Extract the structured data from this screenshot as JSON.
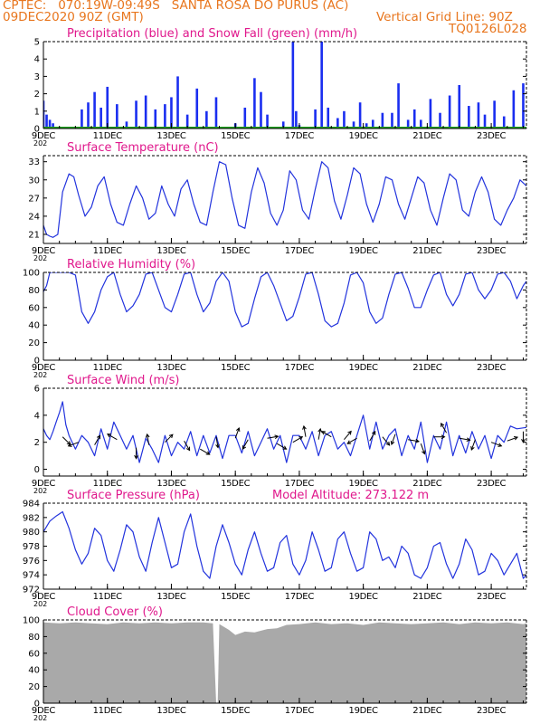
{
  "header": {
    "line1": "CPTEC:   070:19W-09:49S   SANTA ROSA DO PURUS (AC)",
    "line2_left": "09DEC2020 90Z (GMT)",
    "line2_right": "Vertical Grid Line: 90Z",
    "code": "TQ0126L028"
  },
  "colors": {
    "header": "#e8761e",
    "panel_title": "#e0188c",
    "line": "#2233dd",
    "precip_bar": "#1a2ef0",
    "snow": "#1fa01f",
    "cloud": "#a9a9a9",
    "axis": "#000000"
  },
  "x_axis": {
    "tick_labels": [
      "9DEC",
      "11DEC",
      "13DEC",
      "15DEC",
      "17DEC",
      "19DEC",
      "21DEC",
      "23DEC"
    ],
    "tick_days": [
      9,
      11,
      13,
      15,
      17,
      19,
      21,
      23
    ],
    "range_days": [
      9,
      24.1
    ],
    "minor_step_days": 0.5,
    "year_fragment": "202"
  },
  "chart_data": [
    {
      "id": "precip",
      "type": "bar",
      "title": "Precipitation (blue) and Snow Fall (green) (mm/h)",
      "ylim": [
        0,
        5
      ],
      "yticks": [
        0,
        1,
        2,
        3,
        4,
        5
      ],
      "series": [
        {
          "name": "Precipitation",
          "color": "#1a2ef0",
          "x": [
            9.0,
            9.1,
            9.2,
            9.3,
            10.2,
            10.4,
            10.6,
            10.8,
            11.0,
            11.3,
            11.6,
            11.9,
            12.2,
            12.5,
            12.8,
            13.0,
            13.2,
            13.5,
            13.8,
            14.1,
            14.4,
            14.7,
            15.0,
            15.3,
            15.6,
            15.8,
            16.0,
            16.2,
            16.5,
            16.8,
            16.9,
            17.0,
            17.3,
            17.5,
            17.7,
            17.9,
            18.2,
            18.4,
            18.7,
            18.9,
            19.1,
            19.3,
            19.6,
            19.9,
            20.1,
            20.4,
            20.6,
            20.8,
            21.1,
            21.4,
            21.7,
            22.0,
            22.3,
            22.6,
            22.8,
            23.1,
            23.4,
            23.7,
            24.0
          ],
          "values": [
            1.6,
            0.8,
            0.5,
            0.3,
            1.1,
            1.5,
            2.1,
            1.2,
            2.4,
            1.4,
            0.4,
            1.6,
            1.9,
            1.1,
            1.4,
            1.8,
            3.0,
            0.8,
            2.3,
            1.0,
            1.8,
            0.0,
            0.3,
            1.2,
            2.9,
            2.1,
            0.8,
            0.0,
            0.4,
            5.0,
            1.0,
            0.2,
            0.0,
            1.1,
            5.0,
            1.2,
            0.6,
            1.0,
            0.4,
            1.5,
            0.3,
            0.5,
            0.9,
            0.9,
            2.6,
            0.5,
            1.1,
            0.5,
            1.7,
            0.9,
            1.9,
            2.5,
            1.3,
            1.5,
            0.8,
            1.6,
            0.7,
            2.2,
            2.6
          ]
        },
        {
          "name": "Snow Fall",
          "color": "#1fa01f",
          "x": [
            9.0,
            24.1
          ],
          "values": [
            0,
            0
          ]
        }
      ]
    },
    {
      "id": "temp",
      "type": "line",
      "title": "Surface Temperature (nC)",
      "ylim": [
        19.5,
        34
      ],
      "yticks": [
        21,
        24,
        27,
        30,
        33
      ],
      "series": [
        {
          "name": "Temperature",
          "color": "#2233dd",
          "x": [
            9.0,
            9.1,
            9.2,
            9.3,
            9.45,
            9.6,
            9.8,
            9.95,
            10.1,
            10.3,
            10.5,
            10.7,
            10.9,
            11.1,
            11.3,
            11.5,
            11.7,
            11.9,
            12.1,
            12.3,
            12.5,
            12.7,
            12.9,
            13.1,
            13.3,
            13.5,
            13.7,
            13.9,
            14.1,
            14.3,
            14.5,
            14.7,
            14.9,
            15.1,
            15.3,
            15.5,
            15.7,
            15.9,
            16.1,
            16.3,
            16.5,
            16.7,
            16.9,
            17.1,
            17.3,
            17.5,
            17.7,
            17.9,
            18.1,
            18.3,
            18.5,
            18.7,
            18.9,
            19.1,
            19.3,
            19.5,
            19.7,
            19.9,
            20.1,
            20.3,
            20.5,
            20.7,
            20.9,
            21.1,
            21.3,
            21.5,
            21.7,
            21.9,
            22.1,
            22.3,
            22.5,
            22.7,
            22.9,
            23.1,
            23.3,
            23.5,
            23.7,
            23.9,
            24.1
          ],
          "values": [
            22.5,
            21,
            20.7,
            20.5,
            21,
            28,
            31,
            30.5,
            27.5,
            24,
            25.5,
            29,
            30.5,
            26,
            23,
            22.5,
            26,
            29,
            27,
            23.5,
            24.5,
            29,
            26,
            24,
            28.5,
            30,
            26,
            23,
            22.5,
            28,
            33,
            32.5,
            27,
            22.5,
            22,
            28,
            32,
            29.5,
            24.5,
            22.5,
            25,
            31.5,
            30,
            25,
            23.5,
            28.5,
            33,
            32,
            26.5,
            23.5,
            27.5,
            32,
            31,
            26,
            23,
            26,
            30.5,
            30,
            26,
            23.5,
            27,
            30.5,
            29.5,
            25,
            22.5,
            27,
            31,
            30,
            25,
            24,
            28,
            30.5,
            28,
            23.5,
            22.5,
            25,
            27,
            30,
            29
          ]
        }
      ]
    },
    {
      "id": "rh",
      "type": "line",
      "title": "Relative Humidity (%)",
      "ylim": [
        0,
        100
      ],
      "yticks": [
        0,
        20,
        40,
        60,
        80,
        100
      ],
      "series": [
        {
          "name": "Relative Humidity",
          "color": "#2233dd",
          "x": [
            9.0,
            9.1,
            9.2,
            9.4,
            9.6,
            9.8,
            10.0,
            10.2,
            10.4,
            10.6,
            10.8,
            11.0,
            11.2,
            11.4,
            11.6,
            11.8,
            12.0,
            12.2,
            12.4,
            12.6,
            12.8,
            13.0,
            13.2,
            13.4,
            13.6,
            13.8,
            14.0,
            14.2,
            14.4,
            14.6,
            14.8,
            15.0,
            15.2,
            15.4,
            15.6,
            15.8,
            16.0,
            16.2,
            16.4,
            16.6,
            16.8,
            17.0,
            17.2,
            17.4,
            17.6,
            17.8,
            18.0,
            18.2,
            18.4,
            18.6,
            18.8,
            19.0,
            19.2,
            19.4,
            19.6,
            19.8,
            20.0,
            20.2,
            20.4,
            20.6,
            20.8,
            21.0,
            21.2,
            21.4,
            21.6,
            21.8,
            22.0,
            22.2,
            22.4,
            22.6,
            22.8,
            23.0,
            23.2,
            23.4,
            23.6,
            23.8,
            24.0,
            24.1
          ],
          "values": [
            78,
            85,
            100,
            100,
            100,
            100,
            97,
            55,
            42,
            55,
            80,
            95,
            100,
            75,
            55,
            62,
            75,
            98,
            100,
            80,
            60,
            55,
            75,
            98,
            100,
            75,
            55,
            65,
            90,
            100,
            90,
            55,
            38,
            42,
            70,
            95,
            100,
            85,
            65,
            45,
            50,
            72,
            98,
            100,
            75,
            45,
            38,
            42,
            65,
            97,
            100,
            88,
            55,
            42,
            48,
            75,
            98,
            100,
            82,
            60,
            60,
            80,
            97,
            100,
            75,
            62,
            75,
            98,
            100,
            80,
            70,
            80,
            98,
            100,
            90,
            70,
            85,
            90
          ]
        }
      ]
    },
    {
      "id": "wind",
      "type": "line",
      "title": "Surface Wind (m/s)",
      "ylim": [
        -0.5,
        6
      ],
      "yticks": [
        0,
        2,
        4,
        6
      ],
      "series": [
        {
          "name": "Wind speed",
          "color": "#2233dd",
          "x": [
            9.0,
            9.1,
            9.2,
            9.3,
            9.4,
            9.5,
            9.6,
            9.7,
            9.8,
            10.0,
            10.2,
            10.4,
            10.6,
            10.8,
            11.0,
            11.2,
            11.4,
            11.6,
            11.8,
            12.0,
            12.2,
            12.4,
            12.6,
            12.8,
            13.0,
            13.2,
            13.4,
            13.6,
            13.8,
            14.0,
            14.2,
            14.4,
            14.6,
            14.8,
            15.0,
            15.2,
            15.4,
            15.6,
            15.8,
            16.0,
            16.2,
            16.4,
            16.6,
            16.8,
            17.0,
            17.2,
            17.4,
            17.6,
            17.8,
            18.0,
            18.2,
            18.4,
            18.6,
            18.8,
            19.0,
            19.2,
            19.4,
            19.6,
            19.8,
            20.0,
            20.2,
            20.4,
            20.6,
            20.8,
            21.0,
            21.2,
            21.4,
            21.6,
            21.8,
            22.0,
            22.2,
            22.4,
            22.6,
            22.8,
            23.0,
            23.2,
            23.4,
            23.6,
            23.8,
            24.1
          ],
          "values": [
            3.0,
            2.5,
            2.2,
            2.8,
            3.5,
            4.2,
            5.0,
            3.3,
            2.5,
            1.5,
            2.5,
            2.0,
            1.0,
            3.0,
            1.5,
            3.5,
            2.5,
            1.5,
            2.5,
            0.5,
            2.3,
            1.5,
            0.5,
            2.5,
            1.0,
            2.0,
            1.5,
            2.8,
            1.0,
            2.5,
            1.2,
            2.5,
            0.8,
            2.5,
            2.5,
            1.2,
            2.8,
            1.0,
            2.0,
            3.0,
            1.5,
            2.5,
            0.5,
            2.5,
            2.5,
            1.5,
            2.8,
            1.0,
            2.5,
            2.8,
            1.5,
            2.0,
            1.0,
            2.5,
            4.0,
            1.5,
            3.5,
            1.5,
            2.5,
            3.0,
            1.0,
            2.5,
            1.5,
            3.5,
            0.5,
            2.5,
            1.5,
            3.5,
            1.0,
            2.5,
            1.2,
            2.8,
            1.5,
            2.5,
            0.8,
            2.5,
            2.0,
            3.2,
            3.0,
            3.1
          ]
        }
      ],
      "wind_arrows": {
        "x": [
          9.6,
          10.1,
          10.6,
          11.3,
          11.9,
          12.3,
          12.8,
          13.4,
          13.9,
          14.4,
          15.0,
          15.4,
          16.0,
          16.3,
          16.8,
          17.2,
          17.6,
          18.0,
          18.4,
          18.8,
          19.2,
          19.6,
          20.0,
          20.4,
          20.8,
          21.2,
          21.6,
          22.0,
          22.5,
          23.0,
          23.5,
          24.0
        ],
        "speed": [
          2.4,
          2.0,
          1.8,
          2.2,
          1.6,
          1.8,
          2.0,
          2.1,
          1.5,
          2.4,
          2.3,
          2.2,
          2.3,
          1.9,
          2.0,
          2.4,
          2.2,
          2.4,
          2.2,
          2.3,
          2.1,
          2.4,
          2.6,
          2.2,
          1.9,
          2.4,
          2.7,
          2.3,
          2.2,
          2.0,
          2.1,
          2.8
        ],
        "dir_deg": [
          135,
          250,
          30,
          300,
          180,
          350,
          45,
          150,
          120,
          170,
          20,
          210,
          80,
          120,
          60,
          350,
          10,
          300,
          40,
          240,
          30,
          140,
          200,
          100,
          160,
          90,
          330,
          100,
          200,
          110,
          70,
          180
        ]
      }
    },
    {
      "id": "pressure",
      "type": "line",
      "title": "Surface Pressure (hPa)",
      "subtitle": "Model Altitude: 273.122  m",
      "ylim": [
        972,
        984
      ],
      "yticks": [
        972,
        974,
        976,
        978,
        980,
        982,
        984
      ],
      "series": [
        {
          "name": "Pressure",
          "color": "#2233dd",
          "x": [
            9.0,
            9.2,
            9.4,
            9.6,
            9.8,
            10.0,
            10.2,
            10.4,
            10.6,
            10.8,
            11.0,
            11.2,
            11.4,
            11.6,
            11.8,
            12.0,
            12.2,
            12.4,
            12.6,
            12.8,
            13.0,
            13.2,
            13.4,
            13.6,
            13.8,
            14.0,
            14.2,
            14.4,
            14.6,
            14.8,
            15.0,
            15.2,
            15.4,
            15.6,
            15.8,
            16.0,
            16.2,
            16.4,
            16.6,
            16.8,
            17.0,
            17.2,
            17.4,
            17.6,
            17.8,
            18.0,
            18.2,
            18.4,
            18.6,
            18.8,
            19.0,
            19.2,
            19.4,
            19.6,
            19.8,
            20.0,
            20.2,
            20.4,
            20.6,
            20.8,
            21.0,
            21.2,
            21.4,
            21.6,
            21.8,
            22.0,
            22.2,
            22.4,
            22.6,
            22.8,
            23.0,
            23.2,
            23.4,
            23.6,
            23.8,
            24.0,
            24.1
          ],
          "values": [
            980,
            981.5,
            982.2,
            982.8,
            980.5,
            977.5,
            975.5,
            977,
            980.5,
            979.5,
            976,
            974.5,
            977.5,
            981,
            980,
            976.5,
            974.5,
            978.5,
            982,
            978.5,
            975,
            975.5,
            980,
            982.5,
            978,
            974.5,
            973.5,
            978,
            981,
            978.5,
            975.5,
            974,
            977.5,
            980,
            977,
            974.5,
            975,
            978.5,
            979.5,
            975.5,
            974,
            976,
            980,
            977.5,
            974.5,
            975,
            979,
            980,
            977,
            974.5,
            975,
            980,
            979,
            976,
            976.5,
            975,
            978,
            977,
            974,
            973.5,
            975,
            978,
            978.5,
            975.5,
            973.5,
            975.5,
            979,
            977.5,
            974,
            974.5,
            977,
            976,
            974,
            975.5,
            977,
            973.5,
            974
          ]
        }
      ]
    },
    {
      "id": "cloud",
      "type": "area",
      "title": "Cloud Cover (%)",
      "ylim": [
        0,
        100
      ],
      "yticks": [
        0,
        20,
        40,
        60,
        80,
        100
      ],
      "series": [
        {
          "name": "Cloud Cover",
          "color": "#a9a9a9",
          "x": [
            9.0,
            9.5,
            10.0,
            10.5,
            11.0,
            11.5,
            12.0,
            12.5,
            13.0,
            13.5,
            14.0,
            14.3,
            14.4,
            14.45,
            14.5,
            14.8,
            15.0,
            15.3,
            15.6,
            16.0,
            16.3,
            16.6,
            17.0,
            17.5,
            18.0,
            18.5,
            19.0,
            19.5,
            20.0,
            20.5,
            21.0,
            21.5,
            22.0,
            22.5,
            23.0,
            23.5,
            24.0,
            24.1
          ],
          "values": [
            97,
            96,
            97,
            96,
            95,
            97,
            96,
            97,
            96,
            97,
            97,
            96,
            0,
            0,
            95,
            88,
            82,
            86,
            85,
            89,
            90,
            94,
            95,
            97,
            95,
            96,
            94,
            97,
            96,
            95,
            96,
            97,
            95,
            97,
            96,
            97,
            95,
            96
          ]
        }
      ]
    }
  ]
}
